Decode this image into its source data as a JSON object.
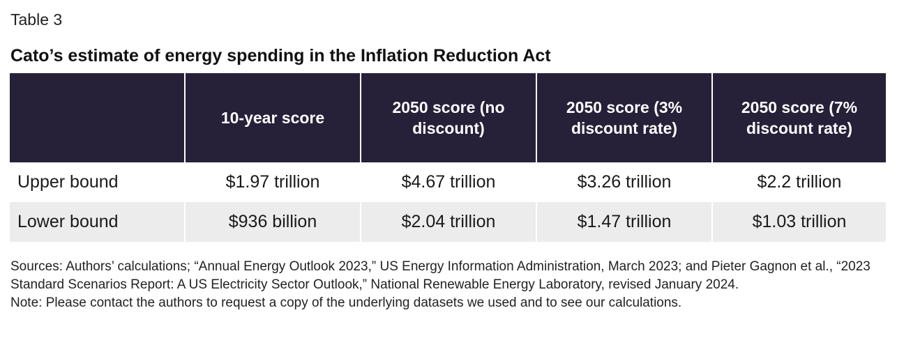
{
  "table_label": "Table 3",
  "title": "Cato’s estimate of energy spending in the Inflation Reduction Act",
  "table": {
    "columns": [
      "",
      "10-year score",
      "2050 score (no discount)",
      "2050 score (3% discount rate)",
      "2050 score (7% discount rate)"
    ],
    "rows": [
      {
        "label": "Upper bound",
        "values": [
          "$1.97 trillion",
          "$4.67 trillion",
          "$3.26 trillion",
          "$2.2 trillion"
        ]
      },
      {
        "label": "Lower bound",
        "values": [
          "$936 billion",
          "$2.04 trillion",
          "$1.47 trillion",
          "$1.03 trillion"
        ]
      }
    ]
  },
  "footnotes": {
    "sources": "Sources: Authors’ calculations; “Annual Energy Outlook 2023,” US Energy Information Administration, March 2023; and Pieter Gagnon et al., “2023 Standard Scenarios Report: A US Electricity Sector Outlook,” National Renewable Energy Laboratory, revised January 2024.",
    "note": "Note: Please contact the authors to request a copy of the underlying datasets we used and to see our calculations."
  },
  "colors": {
    "header_background": "#262038",
    "header_text": "#ffffff",
    "alt_row_background": "#ececec"
  }
}
